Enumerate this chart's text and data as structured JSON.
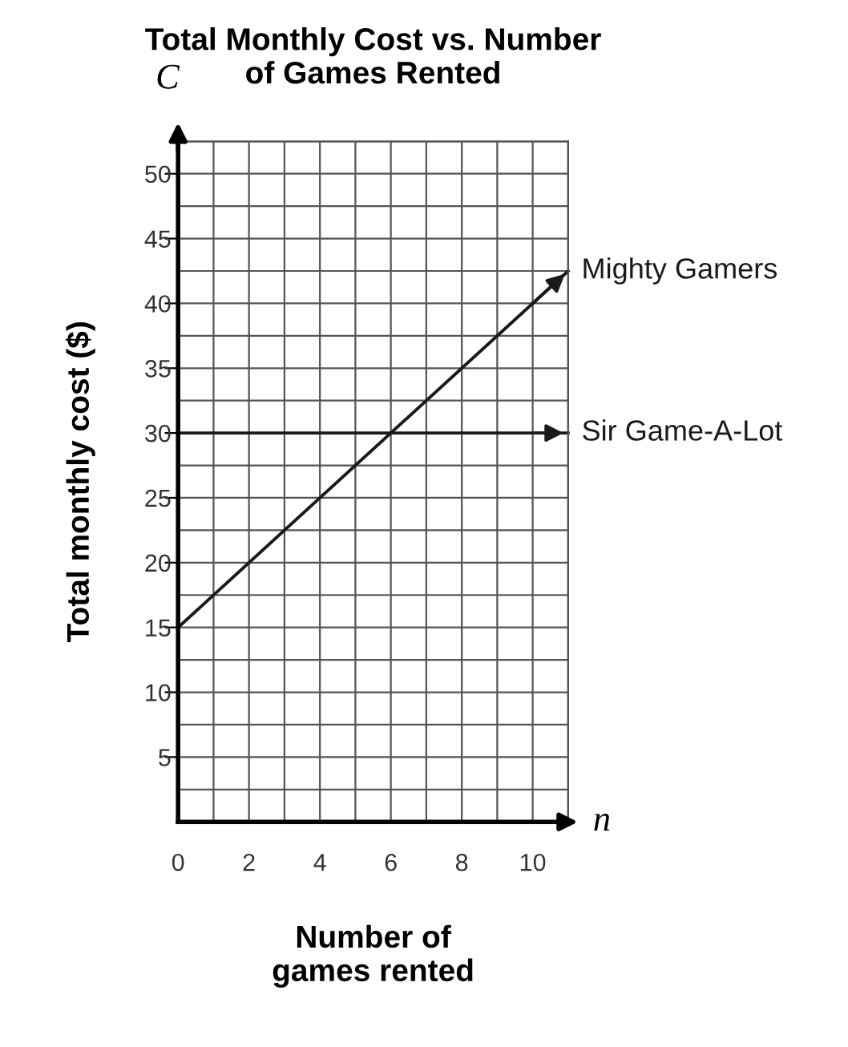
{
  "chart_data": {
    "type": "line",
    "title": "Total Monthly Cost vs. Number\nof Games Rented",
    "xlabel": "Number of\ngames rented",
    "ylabel": "Total monthly cost ($)",
    "annotations": [
      "C",
      "n"
    ],
    "x": [
      0,
      11
    ],
    "series": [
      {
        "name": "Mighty Gamers",
        "color": "#1a1a1a",
        "values": [
          15,
          42.5
        ]
      },
      {
        "name": "Sir Game-A-Lot",
        "color": "#1a1a1a",
        "values": [
          30,
          30
        ]
      }
    ],
    "xlim": [
      0,
      11
    ],
    "ylim": [
      0,
      52.5
    ],
    "xticks": [
      0,
      {
        "value": 1,
        "label": null
      },
      2,
      {
        "value": 3,
        "label": null
      },
      4,
      {
        "value": 5,
        "label": null
      },
      6,
      {
        "value": 7,
        "label": null
      },
      8,
      {
        "value": 9,
        "label": null
      },
      10,
      {
        "value": 11,
        "label": null
      }
    ],
    "yticks": [
      {
        "value": 2.5,
        "label": null
      },
      5,
      {
        "value": 7.5,
        "label": null
      },
      10,
      {
        "value": 12.5,
        "label": null
      },
      15,
      {
        "value": 17.5,
        "label": null
      },
      20,
      {
        "value": 22.5,
        "label": null
      },
      25,
      {
        "value": 27.5,
        "label": null
      },
      30,
      {
        "value": 32.5,
        "label": null
      },
      35,
      {
        "value": 37.5,
        "label": null
      },
      40,
      {
        "value": 42.5,
        "label": null
      },
      45,
      {
        "value": 47.5,
        "label": null
      },
      50,
      {
        "value": 52.5,
        "label": null
      }
    ],
    "grid": true,
    "legend": "right",
    "line_style": "solid",
    "marker": "none"
  }
}
